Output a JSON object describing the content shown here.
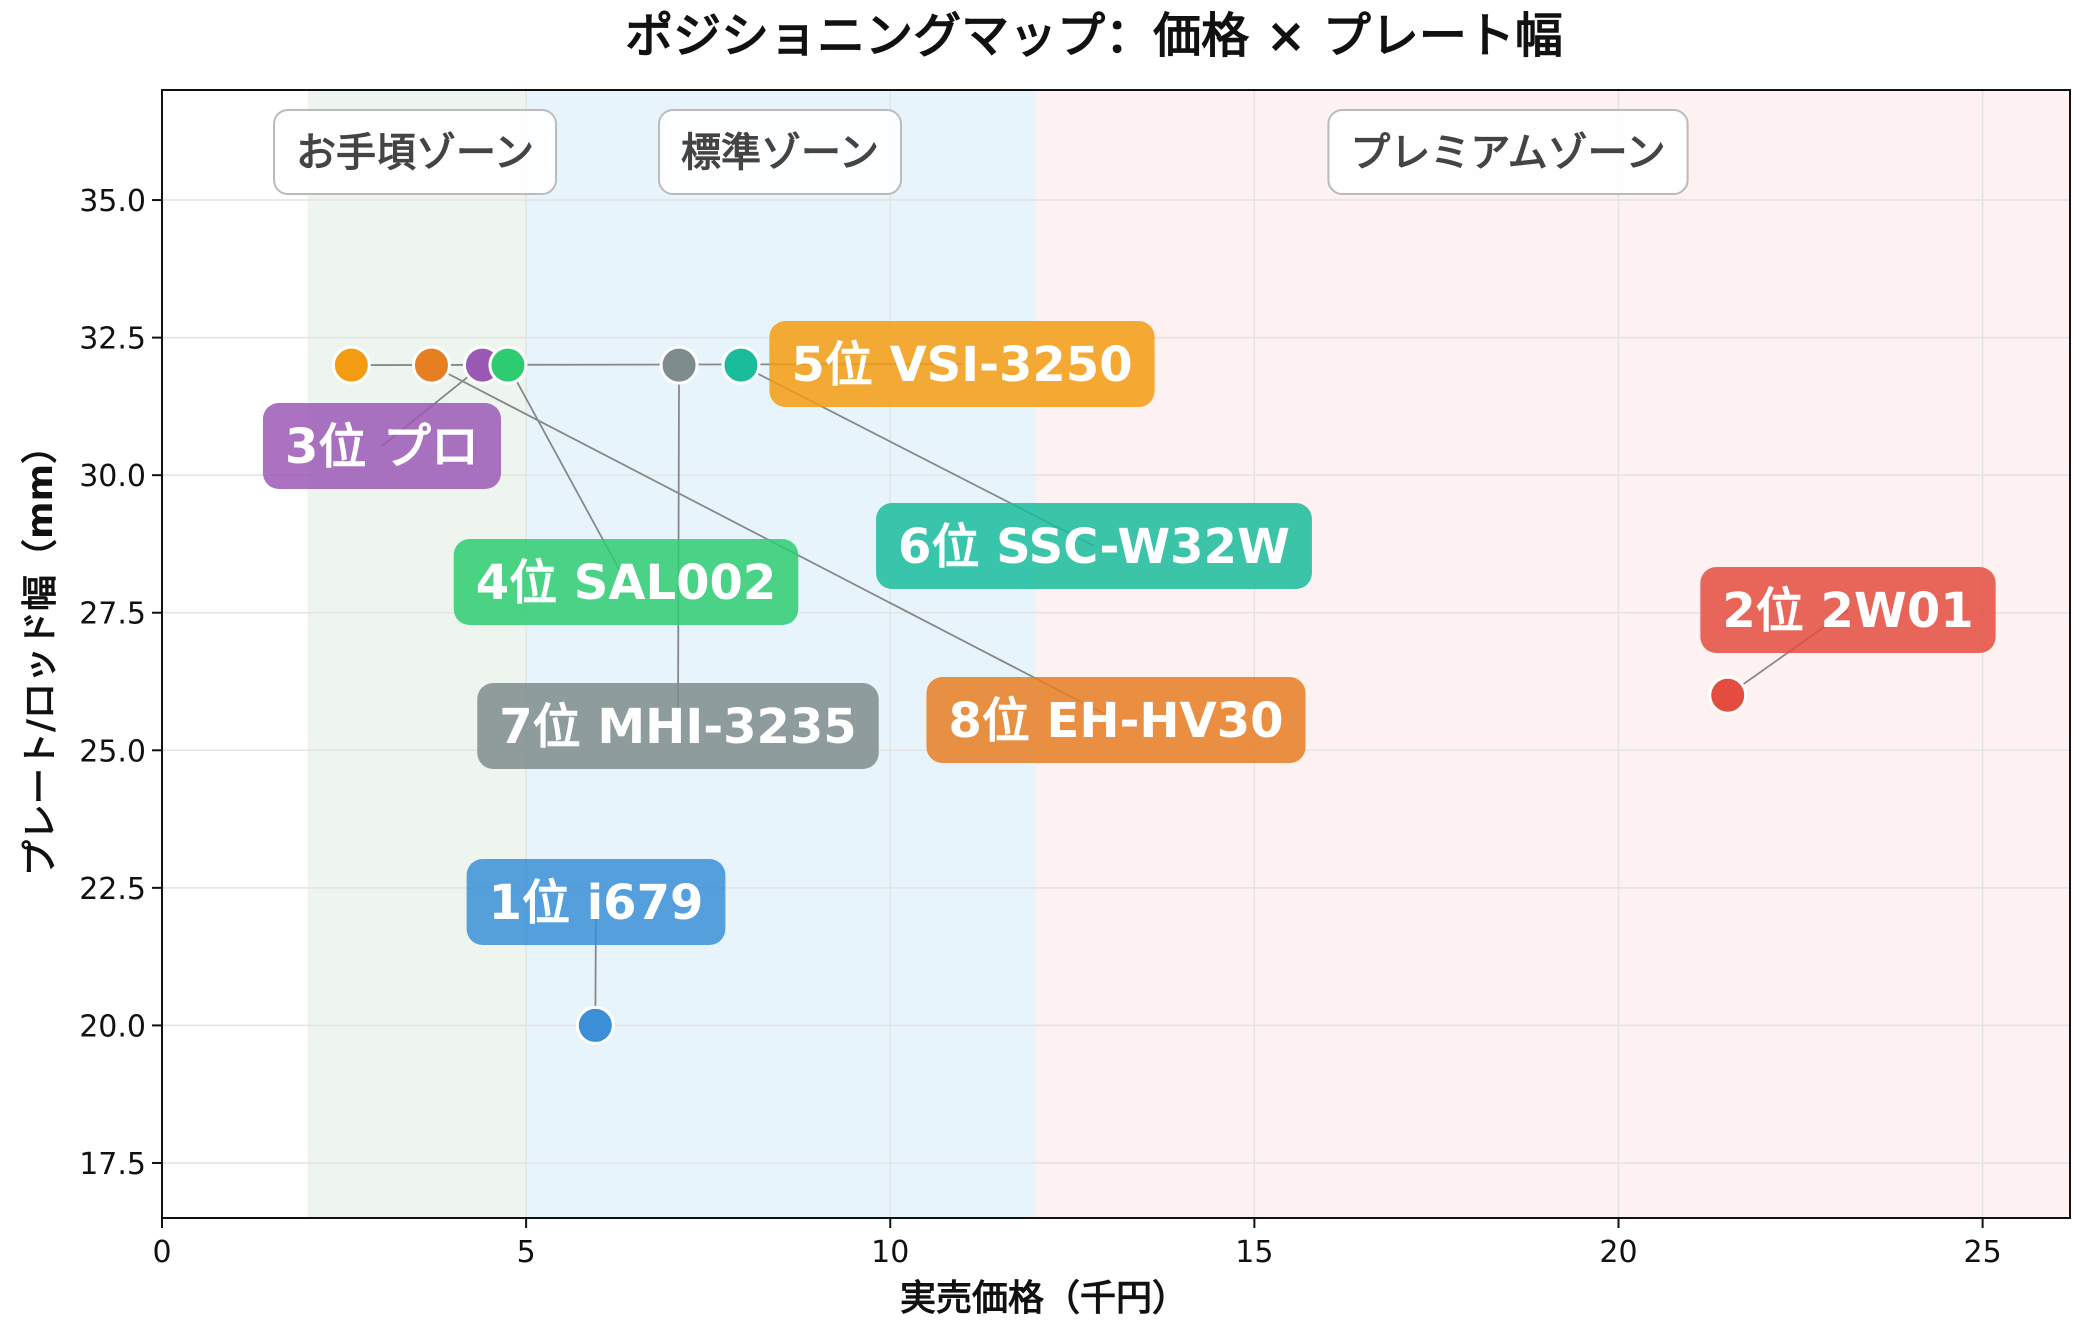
{
  "chart_data": {
    "type": "scatter",
    "title": "ポジショニングマップ：価格 × プレート幅",
    "xlabel": "実売価格（千円）",
    "ylabel": "プレート/ロッド幅（mm）",
    "xlim": [
      0,
      26.2
    ],
    "ylim": [
      16.5,
      37.0
    ],
    "xticks": [
      0,
      5,
      10,
      15,
      20,
      25
    ],
    "xtick_labels": [
      "0",
      "5",
      "10",
      "15",
      "20",
      "25"
    ],
    "yticks": [
      17.5,
      20.0,
      22.5,
      25.0,
      27.5,
      30.0,
      32.5,
      35.0
    ],
    "ytick_labels": [
      "17.5",
      "20.0",
      "22.5",
      "25.0",
      "27.5",
      "30.0",
      "32.5",
      "35.0"
    ],
    "grid": true,
    "zones": [
      {
        "label": "お手頃ゾーン",
        "x_range": [
          2,
          5
        ],
        "color": "#eef5ee"
      },
      {
        "label": "標準ゾーン",
        "x_range": [
          5,
          12
        ],
        "color": "#e8f4fb"
      },
      {
        "label": "プレミアムゾーン",
        "x_range": [
          12,
          26.2
        ],
        "color": "#fdf1f1"
      }
    ],
    "points": [
      {
        "label": "1位 i679",
        "x": 5.95,
        "y": 20.0,
        "color": "#3a8fd6"
      },
      {
        "label": "2位 2W01",
        "x": 21.5,
        "y": 26.0,
        "color": "#e44c3f"
      },
      {
        "label": "3位 プロ",
        "x": 4.4,
        "y": 32.0,
        "color": "#9b59b6"
      },
      {
        "label": "4位 SAL002",
        "x": 4.75,
        "y": 32.0,
        "color": "#2ecc71"
      },
      {
        "label": "5位 VSI-3250",
        "x": 2.6,
        "y": 32.0,
        "color": "#f39c12"
      },
      {
        "label": "6位 SSC-W32W",
        "x": 7.95,
        "y": 32.0,
        "color": "#1abc9c"
      },
      {
        "label": "7位 MHI-3235",
        "x": 7.1,
        "y": 32.0,
        "color": "#7f8c8d"
      },
      {
        "label": "8位 EH-HV30",
        "x": 3.7,
        "y": 32.0,
        "color": "#e67e22"
      }
    ]
  }
}
